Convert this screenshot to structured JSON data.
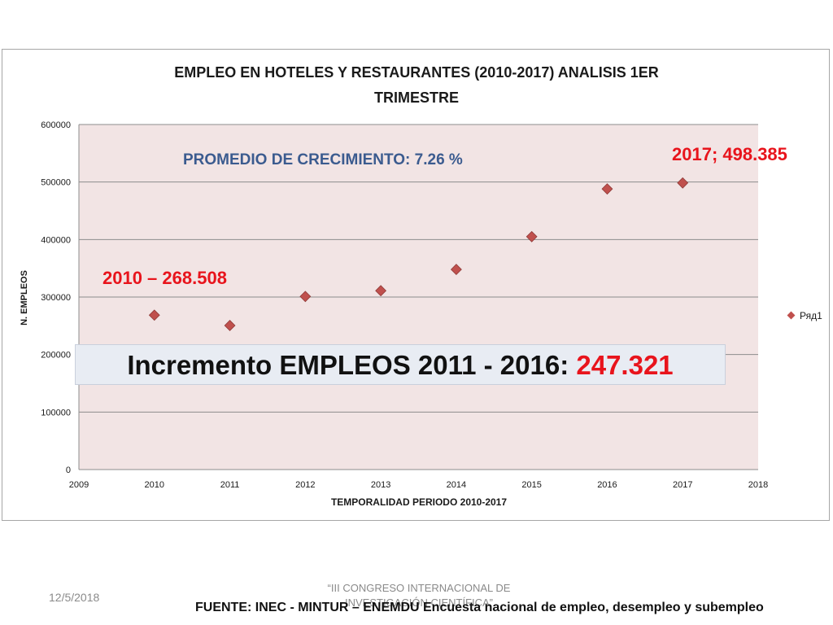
{
  "chart_data": {
    "type": "scatter",
    "title_line1": "EMPLEO EN HOTELES Y RESTAURANTES (2010-2017) ANALISIS 1ER",
    "title_line2": "TRIMESTRE",
    "xlabel": "TEMPORALIDAD PERIODO 2010-2017",
    "ylabel": "N. EMPLEOS",
    "xlim": [
      2009,
      2018
    ],
    "ylim": [
      0,
      600000
    ],
    "xticks": [
      2009,
      2010,
      2011,
      2012,
      2013,
      2014,
      2015,
      2016,
      2017,
      2018
    ],
    "yticks": [
      0,
      100000,
      200000,
      300000,
      400000,
      500000,
      600000
    ],
    "grid": "horizontal",
    "legend_position": "right",
    "series": [
      {
        "name": "Ряд1",
        "color": "#c0504d",
        "x": [
          2010,
          2011,
          2012,
          2013,
          2014,
          2015,
          2016,
          2017
        ],
        "y": [
          268508,
          250500,
          301000,
          311000,
          348000,
          405000,
          488000,
          498385
        ]
      }
    ],
    "plot_background": "#f2e4e4",
    "annotations": {
      "promedio": "PROMEDIO DE CRECIMIENTO:  7.26 %",
      "label_2010": "2010 – 268.508",
      "label_2017": "2017; 498.385",
      "increment_prefix": "Incremento EMPLEOS 2011 - 2016: ",
      "increment_value": "247.321"
    }
  },
  "footer": {
    "date": "12/5/2018",
    "congress_line1": "“III CONGRESO INTERNACIONAL DE",
    "congress_line2": "INVESTIGACIÓN CIENTÍFICA”",
    "source": "FUENTE: INEC - MINTUR – ENEMDU Encuesta nacional de empleo, desempleo y subempleo"
  },
  "colors": {
    "accent_red": "#e8141c",
    "promedio_blue": "#3b5b8f",
    "marker": "#c0504d"
  }
}
